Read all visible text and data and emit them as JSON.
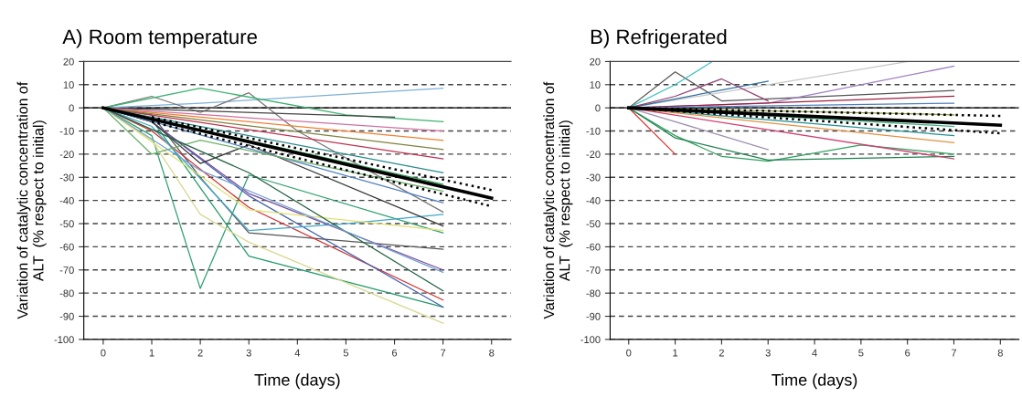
{
  "chart_data": [
    {
      "type": "line",
      "title": "A) Room temperature",
      "xlabel": "Time (days)",
      "ylabel": "Variation of catalytic concentration of\nALT  (% respect to initial)",
      "xlim": [
        -0.4,
        8.4
      ],
      "xticks": [
        0,
        1,
        2,
        3,
        4,
        5,
        6,
        7,
        8
      ],
      "ylim": [
        -100,
        20
      ],
      "yticks": [
        -100,
        -90,
        -80,
        -70,
        -60,
        -50,
        -40,
        -30,
        -20,
        -10,
        0,
        10,
        20
      ],
      "grid": "y",
      "ref_lines": [
        {
          "axis": "y",
          "value": 0,
          "color": "#000000",
          "line_style": "solid"
        }
      ],
      "series": [
        {
          "color": "#7fb0d8",
          "x": [
            0,
            1,
            2,
            7
          ],
          "values": [
            0,
            1,
            2,
            8.5
          ]
        },
        {
          "color": "#2e9e6e",
          "x": [
            0,
            1,
            2,
            3,
            7
          ],
          "values": [
            0,
            -12,
            -78,
            -29,
            -54
          ]
        },
        {
          "color": "#1f9a6a",
          "x": [
            0,
            1,
            3,
            7
          ],
          "values": [
            0,
            -5,
            -64,
            -86
          ]
        },
        {
          "color": "#d8d890",
          "x": [
            0,
            1,
            2,
            3,
            7
          ],
          "values": [
            0,
            -14,
            -46,
            -58,
            -93
          ]
        },
        {
          "color": "#555555",
          "x": [
            0,
            1,
            2,
            3,
            7
          ],
          "values": [
            0,
            -3,
            -30,
            -54,
            -61
          ]
        },
        {
          "color": "#777777",
          "x": [
            0,
            1,
            2,
            3,
            4,
            7
          ],
          "values": [
            0,
            5,
            -2,
            6.5,
            -10,
            -45
          ]
        },
        {
          "color": "#3cb371",
          "x": [
            0,
            2,
            5,
            7
          ],
          "values": [
            0,
            8.5,
            -3,
            -6
          ]
        },
        {
          "color": "#444444",
          "x": [
            0,
            6
          ],
          "values": [
            0,
            -4
          ]
        },
        {
          "color": "#d03030",
          "x": [
            0,
            1,
            3,
            7
          ],
          "values": [
            0,
            -10,
            -43,
            -83
          ]
        },
        {
          "color": "#4060b0",
          "x": [
            0,
            1,
            3,
            7
          ],
          "values": [
            0,
            -6,
            -38,
            -86
          ]
        },
        {
          "color": "#40a8c8",
          "x": [
            0,
            1,
            3,
            5,
            7
          ],
          "values": [
            0,
            -8,
            -53,
            -50,
            -46
          ]
        },
        {
          "color": "#7a4a9a",
          "x": [
            0,
            1,
            3,
            7
          ],
          "values": [
            0,
            -6,
            -37,
            -70
          ]
        },
        {
          "color": "#f08030",
          "x": [
            0,
            7
          ],
          "values": [
            0,
            -14
          ]
        },
        {
          "color": "#c03050",
          "x": [
            0,
            7
          ],
          "values": [
            0,
            -22
          ]
        },
        {
          "color": "#2a8a8a",
          "x": [
            0,
            7
          ],
          "values": [
            0,
            -28
          ]
        },
        {
          "color": "#2aa050",
          "x": [
            0,
            7
          ],
          "values": [
            0,
            -33
          ]
        },
        {
          "color": "#333333",
          "x": [
            0,
            1,
            2,
            3,
            7
          ],
          "values": [
            0,
            -6,
            -24,
            -16,
            -51
          ]
        },
        {
          "color": "#5080c0",
          "x": [
            0,
            7
          ],
          "values": [
            0,
            -41
          ]
        },
        {
          "color": "#e0e070",
          "x": [
            0,
            3,
            7
          ],
          "values": [
            0,
            -44,
            -53
          ]
        },
        {
          "color": "#6ab06a",
          "x": [
            0,
            1,
            2,
            7
          ],
          "values": [
            0,
            -20,
            -14,
            -36
          ]
        },
        {
          "color": "#808040",
          "x": [
            0,
            7
          ],
          "values": [
            0,
            -18
          ]
        },
        {
          "color": "#d070a0",
          "x": [
            0,
            7
          ],
          "values": [
            0,
            -10
          ]
        },
        {
          "color": "#206040",
          "x": [
            0,
            3,
            7
          ],
          "values": [
            0,
            -28,
            -79
          ]
        },
        {
          "color": "#70a0d0",
          "x": [
            0,
            2,
            7
          ],
          "values": [
            0,
            -27,
            -71
          ]
        },
        {
          "color": "#000000",
          "x": [
            0,
            8
          ],
          "values": [
            0,
            -39
          ],
          "line_style": "solid"
        },
        {
          "color": "#000000",
          "x": [
            1,
            8
          ],
          "values": [
            -4,
            -35.5
          ],
          "line_style": "dotted"
        },
        {
          "color": "#000000",
          "x": [
            1,
            8
          ],
          "values": [
            -6,
            -42.5
          ],
          "line_style": "dotted"
        }
      ]
    },
    {
      "type": "line",
      "title": "B) Refrigerated",
      "xlabel": "Time (days)",
      "ylabel": "Variation of catalytic concentration of\nALT  (% respect to initial)",
      "xlim": [
        -0.4,
        8.4
      ],
      "xticks": [
        0,
        1,
        2,
        3,
        4,
        5,
        6,
        7,
        8
      ],
      "ylim": [
        -100,
        20
      ],
      "yticks": [
        -100,
        -90,
        -80,
        -70,
        -60,
        -50,
        -40,
        -30,
        -20,
        -10,
        0,
        10,
        20
      ],
      "grid": "y",
      "ref_lines": [
        {
          "axis": "y",
          "value": 0,
          "color": "#000000",
          "line_style": "solid"
        }
      ],
      "series": [
        {
          "color": "#555555",
          "x": [
            0,
            1,
            2,
            7
          ],
          "values": [
            0,
            15.5,
            3,
            7.5
          ]
        },
        {
          "color": "#40c0c0",
          "x": [
            0,
            1,
            1.8
          ],
          "values": [
            0,
            10,
            20
          ]
        },
        {
          "color": "#c8c8c8",
          "x": [
            0,
            6
          ],
          "values": [
            0,
            20
          ]
        },
        {
          "color": "#a080c0",
          "x": [
            0,
            3,
            7
          ],
          "values": [
            0,
            2,
            18
          ]
        },
        {
          "color": "#3070a0",
          "x": [
            0,
            3
          ],
          "values": [
            0,
            11.5
          ]
        },
        {
          "color": "#904070",
          "x": [
            0,
            1,
            2,
            3
          ],
          "values": [
            0,
            5,
            12.5,
            3
          ]
        },
        {
          "color": "#e03030",
          "x": [
            0,
            1
          ],
          "values": [
            0,
            -20
          ]
        },
        {
          "color": "#30a060",
          "x": [
            0,
            1,
            2,
            3,
            5,
            7
          ],
          "values": [
            0,
            -12,
            -21,
            -23,
            -16,
            -20
          ]
        },
        {
          "color": "#208050",
          "x": [
            0,
            1,
            3,
            7
          ],
          "values": [
            0,
            -13,
            -22.5,
            -21
          ]
        },
        {
          "color": "#a02040",
          "x": [
            0,
            7
          ],
          "values": [
            0,
            5
          ]
        },
        {
          "color": "#a090b0",
          "x": [
            0,
            2,
            3
          ],
          "values": [
            0,
            -12,
            -18
          ]
        },
        {
          "color": "#209090",
          "x": [
            0,
            7
          ],
          "values": [
            0,
            -12
          ]
        },
        {
          "color": "#d04070",
          "x": [
            0,
            7
          ],
          "values": [
            0,
            -22
          ]
        },
        {
          "color": "#5080c0",
          "x": [
            0,
            7
          ],
          "values": [
            0,
            2
          ]
        },
        {
          "color": "#e09040",
          "x": [
            0,
            7
          ],
          "values": [
            0,
            -15
          ]
        },
        {
          "color": "#90a040",
          "x": [
            0,
            7
          ],
          "values": [
            0,
            -3
          ]
        },
        {
          "color": "#40b080",
          "x": [
            0,
            7
          ],
          "values": [
            0,
            -8
          ]
        },
        {
          "color": "#000000",
          "x": [
            0,
            8
          ],
          "values": [
            0,
            -7.5
          ],
          "line_style": "solid"
        },
        {
          "color": "#000000",
          "x": [
            0,
            8
          ],
          "values": [
            0,
            -3.5
          ],
          "line_style": "dotted"
        },
        {
          "color": "#000000",
          "x": [
            0,
            8
          ],
          "values": [
            0,
            -11
          ],
          "line_style": "dotted"
        }
      ]
    }
  ]
}
